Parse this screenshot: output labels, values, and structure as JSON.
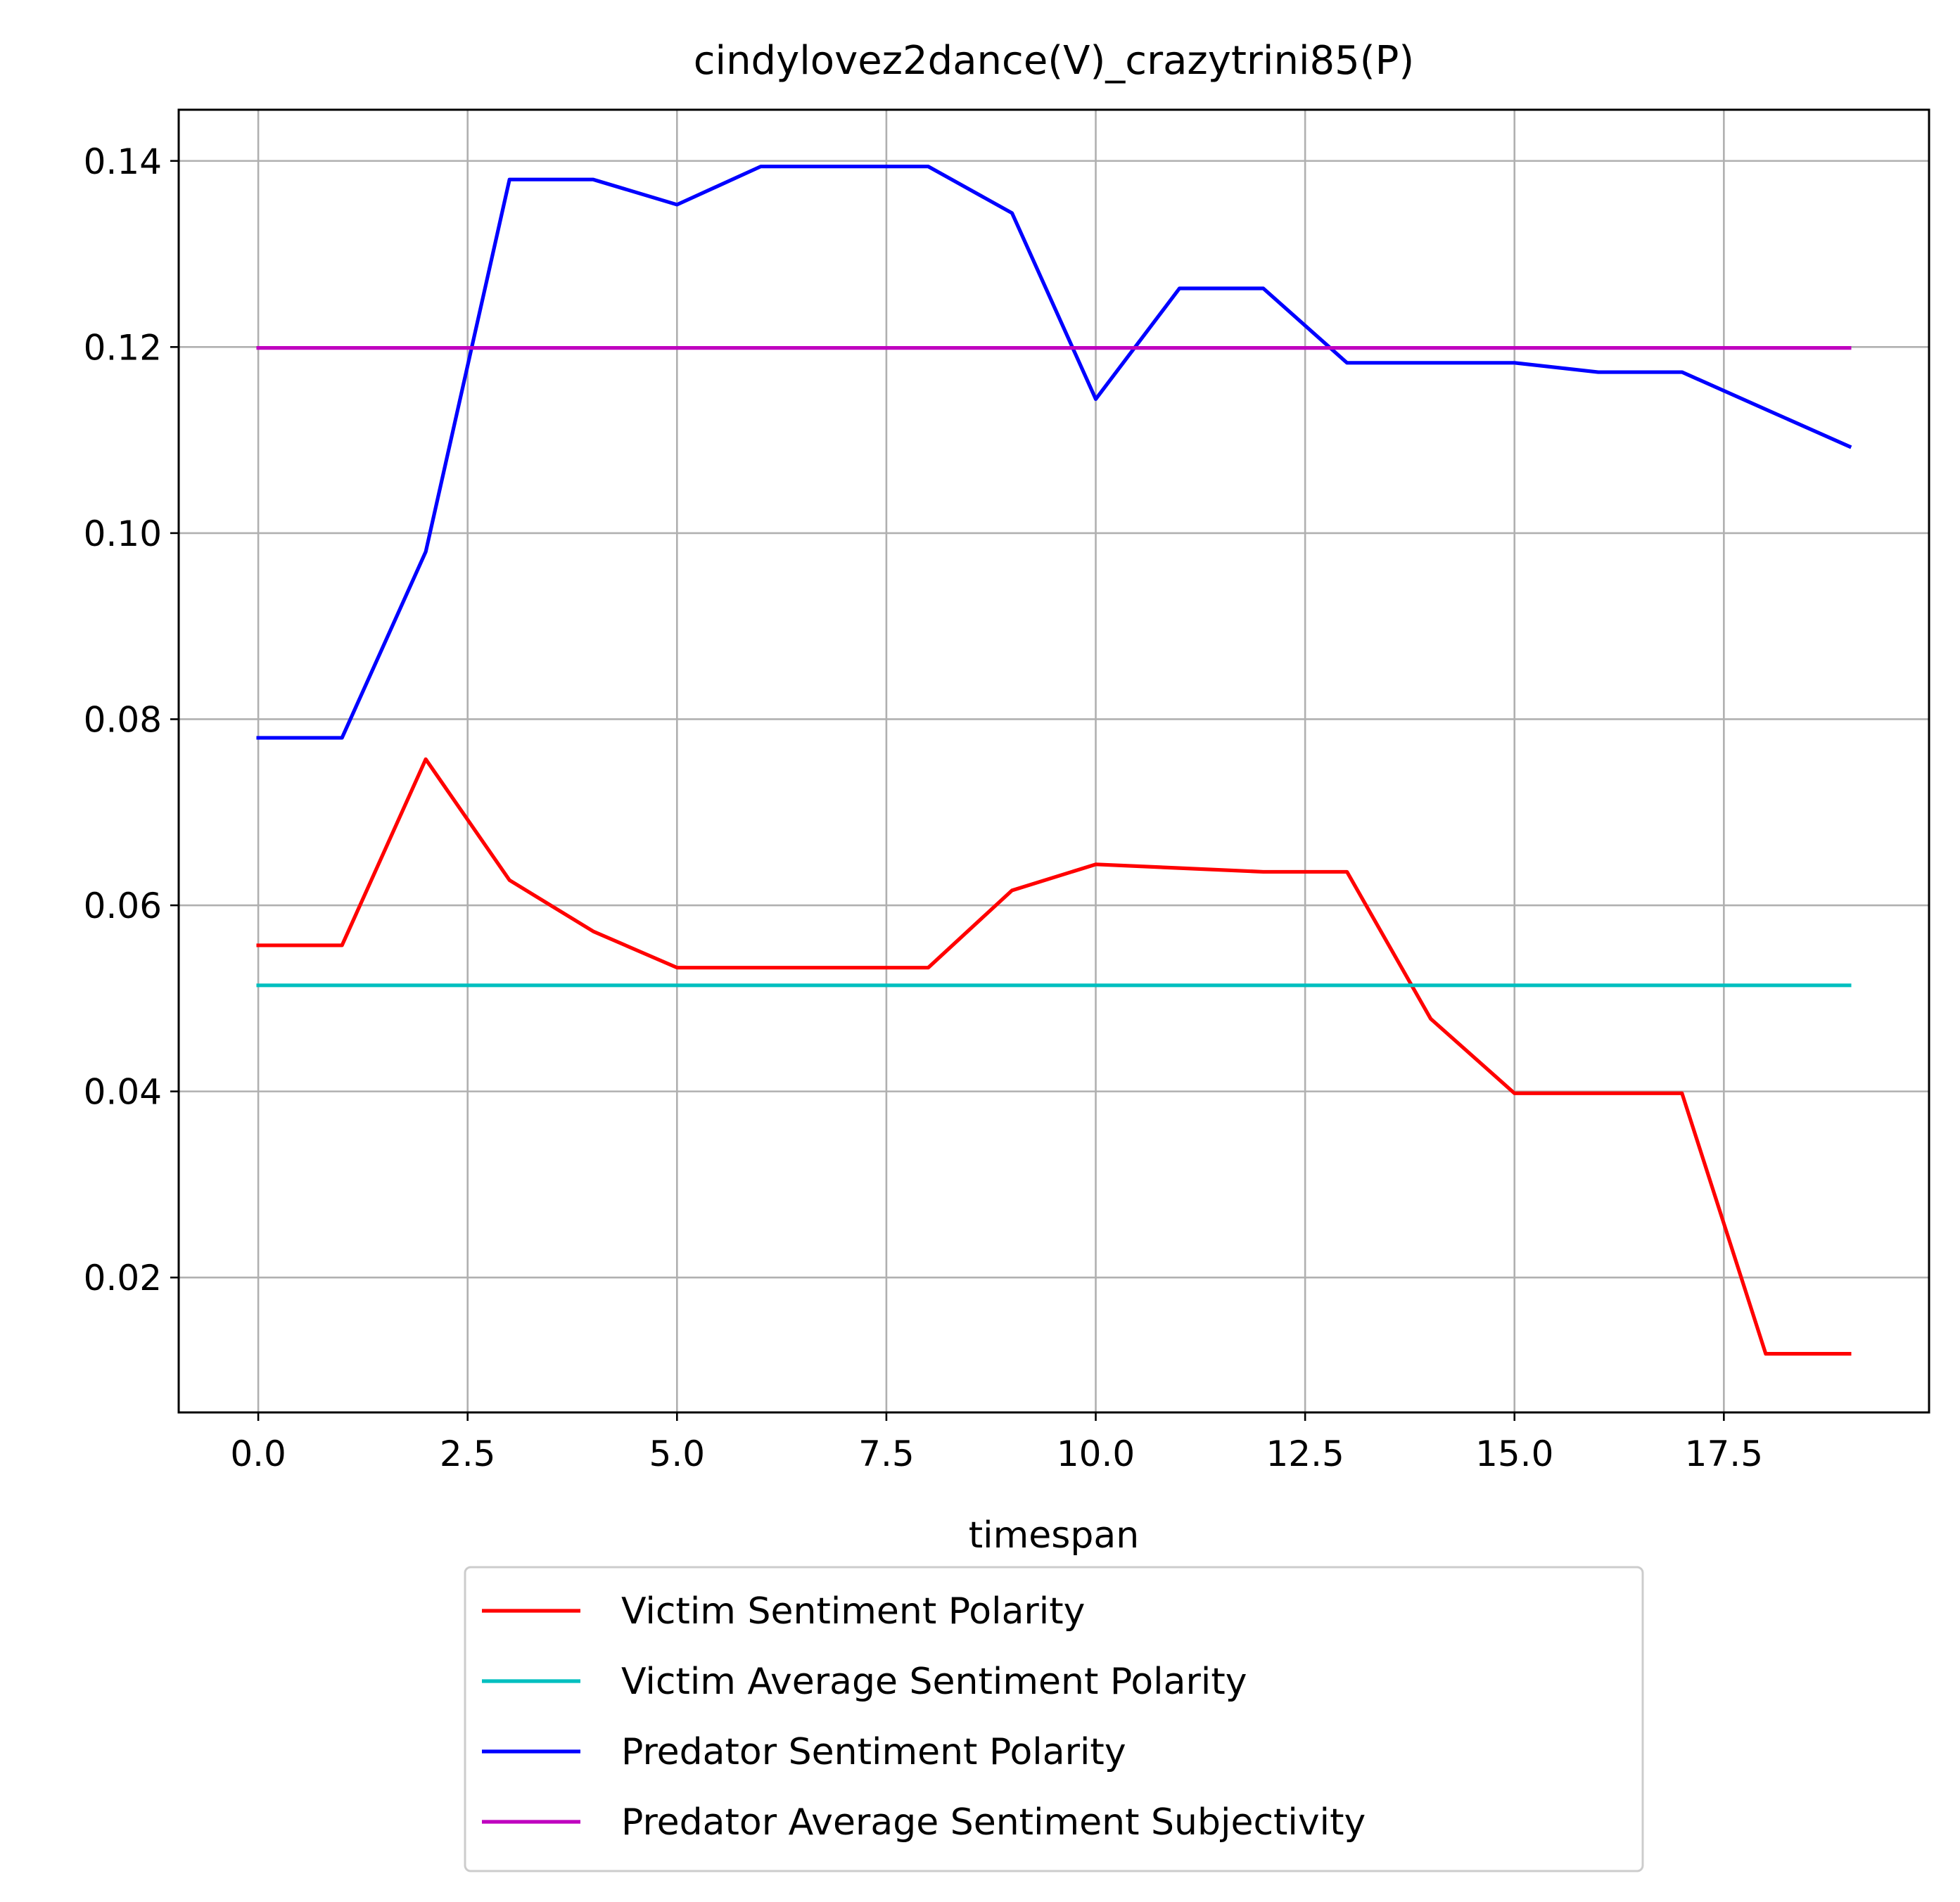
{
  "chart_data": {
    "type": "line",
    "title": "cindylovez2dance(V)_crazytrini85(P)",
    "xlabel": "timespan",
    "ylabel": "",
    "xlim": [
      -0.95,
      19.95
    ],
    "ylim": [
      0.0055,
      0.1455
    ],
    "xticks": [
      0.0,
      2.5,
      5.0,
      7.5,
      10.0,
      12.5,
      15.0,
      17.5
    ],
    "xtick_labels": [
      "0.0",
      "2.5",
      "5.0",
      "7.5",
      "10.0",
      "12.5",
      "15.0",
      "17.5"
    ],
    "yticks": [
      0.02,
      0.04,
      0.06,
      0.08,
      0.1,
      0.12,
      0.14
    ],
    "ytick_labels": [
      "0.02",
      "0.04",
      "0.06",
      "0.08",
      "0.10",
      "0.12",
      "0.14"
    ],
    "grid": true,
    "legend_position": "below plot",
    "x": [
      0,
      1,
      2,
      3,
      4,
      5,
      6,
      7,
      8,
      9,
      10,
      11,
      12,
      13,
      14,
      15,
      16,
      17,
      18,
      19
    ],
    "series": [
      {
        "name": "Victim Sentiment Polarity",
        "color": "#ff0000",
        "values": [
          0.0557,
          0.0557,
          0.0757,
          0.0627,
          0.0572,
          0.0533,
          0.0533,
          0.0533,
          0.0533,
          0.0616,
          0.0644,
          0.064,
          0.0636,
          0.0636,
          0.0478,
          0.0398,
          0.0398,
          0.0398,
          0.0118,
          0.0118
        ]
      },
      {
        "name": "Victim Average Sentiment Polarity",
        "color": "#00bfbf",
        "values": [
          0.0514,
          0.0514,
          0.0514,
          0.0514,
          0.0514,
          0.0514,
          0.0514,
          0.0514,
          0.0514,
          0.0514,
          0.0514,
          0.0514,
          0.0514,
          0.0514,
          0.0514,
          0.0514,
          0.0514,
          0.0514,
          0.0514,
          0.0514
        ]
      },
      {
        "name": "Predator Sentiment Polarity",
        "color": "#0000ff",
        "values": [
          0.078,
          0.078,
          0.098,
          0.138,
          0.138,
          0.1353,
          0.1394,
          0.1394,
          0.1394,
          0.1344,
          0.1144,
          0.1263,
          0.1263,
          0.1183,
          0.1183,
          0.1183,
          0.1173,
          0.1173,
          0.1133,
          0.1093
        ]
      },
      {
        "name": "Predator Average Sentiment Subjectivity",
        "color": "#bf00bf",
        "values": [
          0.1199,
          0.1199,
          0.1199,
          0.1199,
          0.1199,
          0.1199,
          0.1199,
          0.1199,
          0.1199,
          0.1199,
          0.1199,
          0.1199,
          0.1199,
          0.1199,
          0.1199,
          0.1199,
          0.1199,
          0.1199,
          0.1199,
          0.1199
        ]
      }
    ]
  }
}
